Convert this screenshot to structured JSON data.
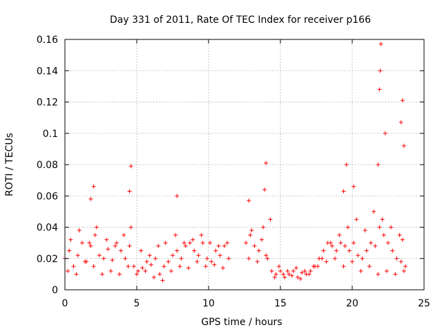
{
  "chart_data": {
    "type": "scatter",
    "title": "Day 331 of 2011, Rate Of TEC Index for receiver p166",
    "xlabel": "GPS time / hours",
    "ylabel": "ROTI / TECUs",
    "xlim": [
      0,
      25
    ],
    "ylim": [
      0,
      0.16
    ],
    "x_ticks": [
      "0",
      "5",
      "10",
      "15",
      "20",
      "25"
    ],
    "y_ticks": [
      "0",
      "0.02",
      "0.04",
      "0.06",
      "0.08",
      "0.1",
      "0.12",
      "0.14",
      "0.16"
    ],
    "grid": true,
    "marker": "plus",
    "series_color": "#ff0000",
    "series": [
      {
        "x": [
          0.0,
          0.3,
          0.6,
          0.9,
          1.2,
          1.5,
          1.8,
          2.1,
          2.4,
          2.7,
          3.0,
          3.3,
          3.6,
          3.9,
          4.2,
          4.5,
          4.8,
          5.1,
          5.4,
          5.7,
          6.0,
          6.3,
          6.6,
          6.9,
          7.2,
          7.5,
          7.8,
          8.1,
          8.4,
          8.7,
          9.0,
          9.3,
          9.6,
          9.9,
          10.2,
          10.5,
          10.8,
          11.1,
          11.4,
          12.6,
          12.9,
          13.2,
          13.5,
          13.8,
          14.1,
          14.4,
          14.7,
          15.0,
          15.3,
          15.6,
          15.9,
          16.2,
          16.5,
          16.8,
          17.1,
          17.4,
          17.7,
          18.0,
          18.3,
          18.6,
          18.9,
          19.2,
          19.5,
          19.8,
          20.1,
          20.4,
          20.7,
          21.0,
          21.3,
          21.6,
          21.9,
          22.2,
          22.5,
          22.8,
          23.1,
          23.4,
          23.7,
          0.2,
          0.8,
          1.4,
          2.0,
          2.6,
          3.2,
          3.8,
          4.4,
          5.0,
          5.6,
          6.2,
          6.8,
          7.4,
          8.0,
          8.6,
          9.2,
          9.8,
          10.4,
          11.0,
          12.8,
          13.4,
          14.0,
          14.6,
          15.2,
          15.8,
          16.4,
          17.0,
          17.6,
          18.2,
          18.8,
          19.4,
          20.0,
          20.6,
          21.2,
          21.8,
          22.4,
          23.0,
          23.6,
          0.4,
          1.0,
          1.7,
          2.2,
          2.9,
          3.5,
          4.1,
          4.6,
          5.3,
          5.9,
          6.5,
          7.0,
          7.7,
          8.3,
          8.9,
          9.5,
          10.1,
          10.7,
          11.3,
          13.0,
          13.7,
          14.3,
          14.9,
          15.5,
          16.1,
          16.7,
          17.3,
          17.9,
          18.5,
          19.1,
          19.7,
          20.3,
          20.9,
          21.5,
          22.1,
          22.7,
          23.3,
          23.5,
          1.8,
          2.0,
          4.5,
          4.6,
          7.8,
          12.8,
          13.9,
          14.0,
          19.4,
          19.6,
          20.1,
          21.8,
          21.9,
          21.95,
          22.0,
          22.3,
          23.4,
          23.5,
          23.6
        ],
        "y": [
          0.02,
          0.025,
          0.015,
          0.022,
          0.03,
          0.018,
          0.028,
          0.035,
          0.022,
          0.02,
          0.026,
          0.019,
          0.03,
          0.025,
          0.02,
          0.028,
          0.015,
          0.012,
          0.014,
          0.018,
          0.016,
          0.02,
          0.01,
          0.015,
          0.018,
          0.022,
          0.025,
          0.02,
          0.028,
          0.03,
          0.025,
          0.022,
          0.03,
          0.02,
          0.018,
          0.025,
          0.022,
          0.028,
          0.02,
          0.03,
          0.035,
          0.028,
          0.025,
          0.04,
          0.02,
          0.012,
          0.01,
          0.012,
          0.008,
          0.01,
          0.012,
          0.008,
          0.011,
          0.01,
          0.012,
          0.015,
          0.02,
          0.025,
          0.03,
          0.028,
          0.025,
          0.03,
          0.028,
          0.025,
          0.03,
          0.022,
          0.02,
          0.025,
          0.03,
          0.028,
          0.04,
          0.035,
          0.03,
          0.025,
          0.02,
          0.018,
          0.015,
          0.012,
          0.01,
          0.018,
          0.015,
          0.01,
          0.012,
          0.01,
          0.015,
          0.01,
          0.012,
          0.008,
          0.006,
          0.012,
          0.015,
          0.014,
          0.018,
          0.015,
          0.016,
          0.014,
          0.02,
          0.018,
          0.022,
          0.008,
          0.01,
          0.009,
          0.007,
          0.01,
          0.015,
          0.018,
          0.02,
          0.015,
          0.018,
          0.012,
          0.015,
          0.01,
          0.012,
          0.01,
          0.012,
          0.032,
          0.038,
          0.03,
          0.04,
          0.032,
          0.028,
          0.035,
          0.04,
          0.025,
          0.022,
          0.028,
          0.03,
          0.035,
          0.03,
          0.032,
          0.035,
          0.03,
          0.028,
          0.03,
          0.038,
          0.032,
          0.045,
          0.015,
          0.012,
          0.014,
          0.012,
          0.015,
          0.02,
          0.03,
          0.035,
          0.04,
          0.045,
          0.038,
          0.05,
          0.045,
          0.04,
          0.035,
          0.032,
          0.058,
          0.066,
          0.063,
          0.079,
          0.06,
          0.057,
          0.064,
          0.081,
          0.063,
          0.08,
          0.066,
          0.08,
          0.128,
          0.14,
          0.157,
          0.1,
          0.107,
          0.121,
          0.092
        ]
      }
    ]
  }
}
